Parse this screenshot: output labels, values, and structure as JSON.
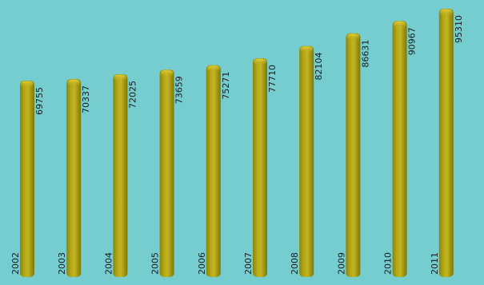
{
  "colors": {
    "background": "#76cdd0",
    "bar_light": "#c9b624",
    "bar_mid": "#aaa012",
    "bar_dark": "#7f7a08",
    "text": "#1a1a1a"
  },
  "chart_data": {
    "type": "bar",
    "title": "",
    "xlabel": "",
    "ylabel": "",
    "categories": [
      "2002",
      "2003",
      "2004",
      "2005",
      "2006",
      "2007",
      "2008",
      "2009",
      "2010",
      "2011"
    ],
    "values": [
      69755,
      70337,
      72025,
      73659,
      75271,
      77710,
      82104,
      86631,
      90967,
      95310
    ],
    "value_labels": [
      "69755",
      "70337",
      "72025",
      "73659",
      "75271",
      "77710",
      "82104",
      "86631",
      "90967",
      "95310"
    ],
    "ylim": [
      0,
      100000
    ],
    "grid": false,
    "legend": "none",
    "axes_visible": false,
    "orientation": "vertical",
    "label_rotation": -90
  }
}
